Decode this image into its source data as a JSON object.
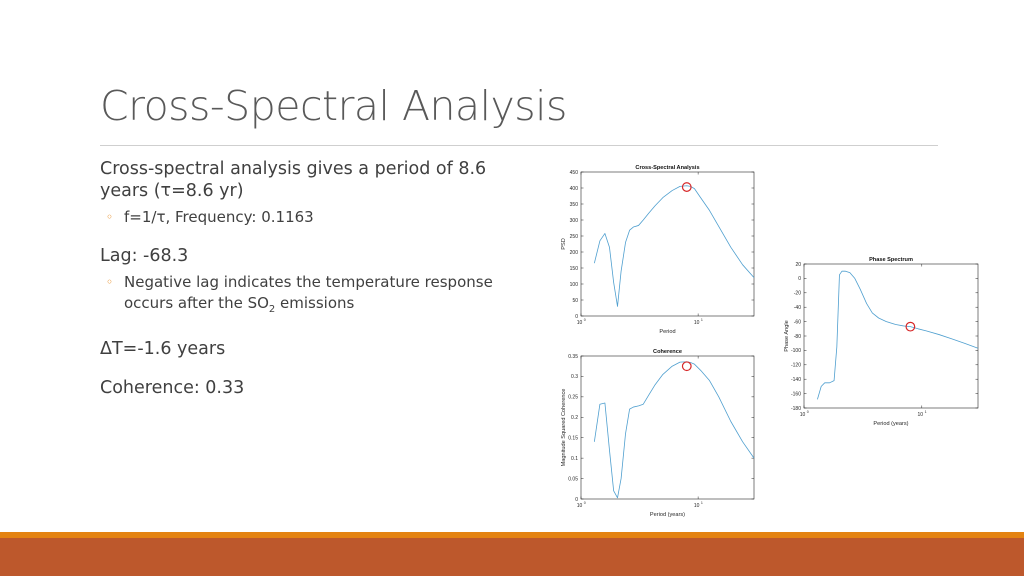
{
  "slide": {
    "title": "Cross-Spectral Analysis",
    "b1_line1": "Cross-spectral analysis gives a period of 8.6",
    "b1_line2": "years (τ=8.6 yr)",
    "b1_sub": "f=1/τ, Frequency: 0.1163",
    "b2": "Lag: -68.3",
    "b2_sub_line1": "Negative lag indicates the temperature response",
    "b2_sub_line2_a": "occurs after the SO",
    "b2_sub_line2_sub": "2",
    "b2_sub_line2_b": " emissions",
    "b3": "ΔT=-1.6 years",
    "b4": "Coherence: 0.33",
    "bullet_glyph": "◦"
  },
  "theme": {
    "accent": "#e48312",
    "band": "#bd582c",
    "line": "#4f9fcf",
    "marker": "#d62728"
  },
  "chart_data": [
    {
      "id": "psd",
      "type": "line",
      "title": "Cross-Spectral Analysis",
      "xlabel": "Period",
      "ylabel": "PSD",
      "xscale": "log",
      "xlim": [
        1,
        30
      ],
      "ylim": [
        0,
        450
      ],
      "yticks": [
        0,
        50,
        100,
        150,
        200,
        250,
        300,
        350,
        400,
        450
      ],
      "xticks": [
        {
          "v": 1,
          "base": "10",
          "exp": "0"
        },
        {
          "v": 10,
          "base": "10",
          "exp": "1"
        }
      ],
      "x": [
        1.3,
        1.45,
        1.6,
        1.75,
        1.9,
        2.05,
        2.2,
        2.4,
        2.6,
        2.8,
        3.1,
        3.4,
        3.8,
        4.3,
        5.0,
        6.0,
        7.0,
        8.0,
        8.6,
        9.3,
        10.5,
        12.5,
        15,
        19,
        24,
        30
      ],
      "y": [
        165,
        235,
        258,
        215,
        105,
        30,
        140,
        230,
        268,
        278,
        283,
        300,
        322,
        345,
        370,
        392,
        405,
        407,
        405,
        398,
        370,
        330,
        280,
        215,
        160,
        120
      ],
      "marker": {
        "x": 8.0,
        "y": 403
      }
    },
    {
      "id": "coh",
      "type": "line",
      "title": "Coherence",
      "xlabel": "Period (years)",
      "ylabel": "Magnitude Squared Coherence",
      "xscale": "log",
      "xlim": [
        1,
        30
      ],
      "ylim": [
        0,
        0.35
      ],
      "yticks": [
        0,
        0.05,
        0.1,
        0.15,
        0.2,
        0.25,
        0.3,
        0.35
      ],
      "xticks": [
        {
          "v": 1,
          "base": "10",
          "exp": "0"
        },
        {
          "v": 10,
          "base": "10",
          "exp": "1"
        }
      ],
      "x": [
        1.3,
        1.45,
        1.6,
        1.75,
        1.9,
        2.05,
        2.2,
        2.4,
        2.6,
        2.8,
        3.1,
        3.4,
        3.8,
        4.3,
        5.0,
        6.0,
        7.0,
        8.0,
        8.6,
        9.3,
        10.5,
        12.5,
        15,
        19,
        24,
        30
      ],
      "y": [
        0.14,
        0.232,
        0.235,
        0.12,
        0.02,
        0.003,
        0.05,
        0.16,
        0.22,
        0.225,
        0.228,
        0.232,
        0.255,
        0.28,
        0.305,
        0.325,
        0.335,
        0.336,
        0.334,
        0.33,
        0.315,
        0.29,
        0.25,
        0.19,
        0.14,
        0.1
      ],
      "marker": {
        "x": 8.0,
        "y": 0.325
      }
    },
    {
      "id": "phase",
      "type": "line",
      "title": "Phase Spectrum",
      "xlabel": "Period (years)",
      "ylabel": "Phase Angle",
      "xscale": "log",
      "xlim": [
        1,
        30
      ],
      "ylim": [
        -180,
        20
      ],
      "yticks": [
        -180,
        -160,
        -140,
        -120,
        -100,
        -80,
        -60,
        -40,
        -20,
        0,
        20
      ],
      "xticks": [
        {
          "v": 1,
          "base": "10",
          "exp": "0"
        },
        {
          "v": 10,
          "base": "10",
          "exp": "1"
        }
      ],
      "x": [
        1.3,
        1.4,
        1.5,
        1.65,
        1.8,
        1.9,
        2.0,
        2.1,
        2.25,
        2.45,
        2.7,
        3.0,
        3.4,
        3.8,
        4.3,
        5.0,
        6.0,
        7.0,
        8.0,
        9.3,
        11,
        14,
        18,
        23,
        30
      ],
      "y": [
        -168,
        -150,
        -145,
        -145,
        -142,
        -95,
        5,
        10,
        10,
        8,
        0,
        -15,
        -35,
        -48,
        -55,
        -60,
        -64,
        -66,
        -67,
        -70,
        -73,
        -78,
        -84,
        -90,
        -97
      ],
      "marker": {
        "x": 8.0,
        "y": -67
      }
    }
  ]
}
